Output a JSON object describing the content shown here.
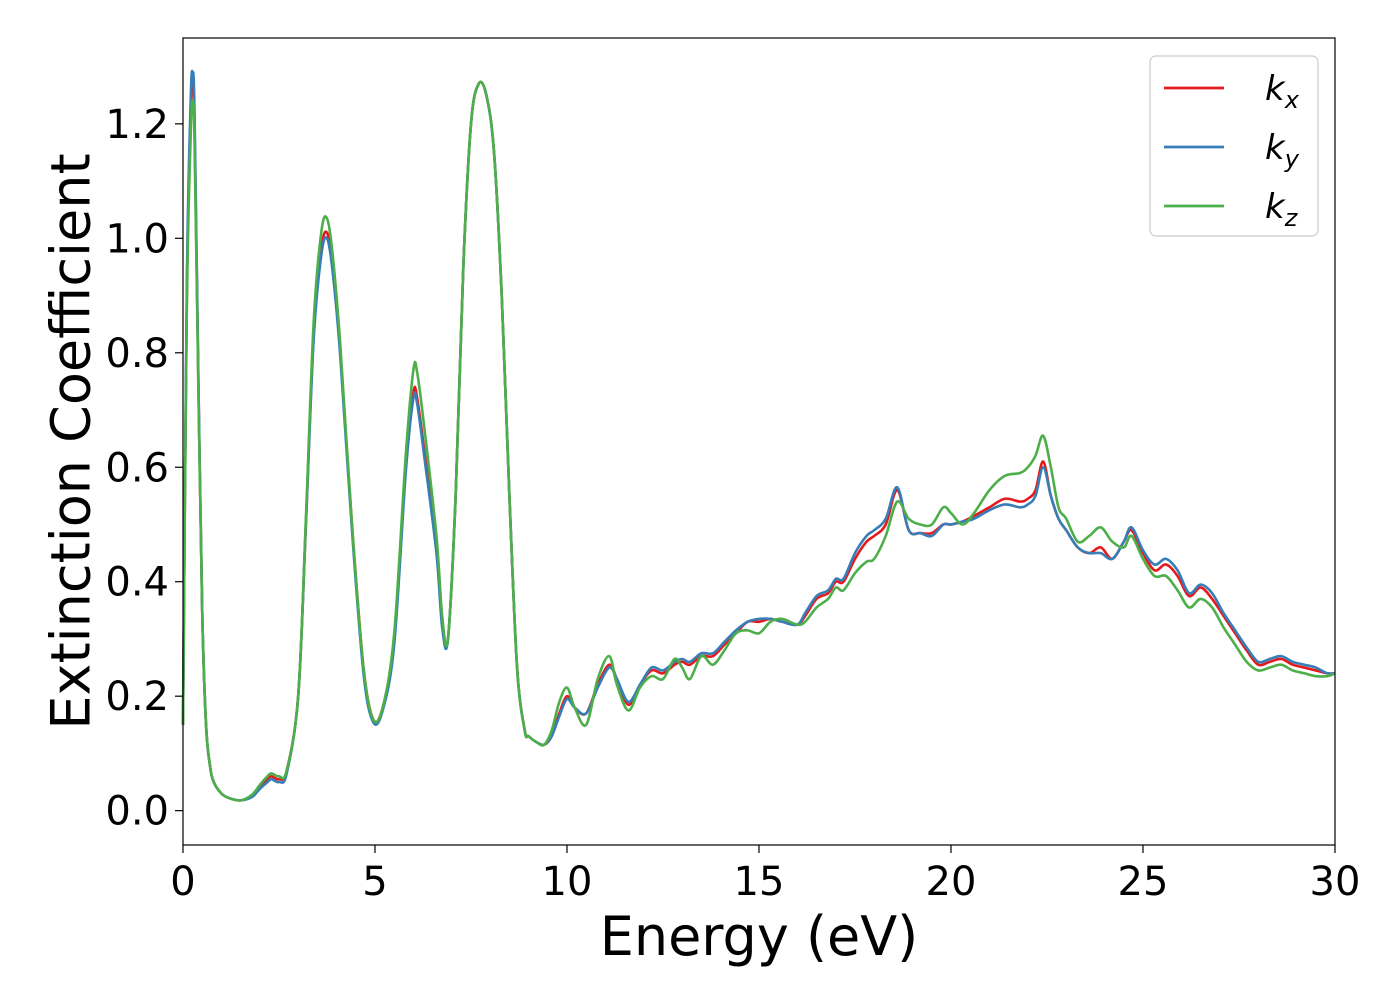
{
  "chart_data": {
    "type": "line",
    "title": "",
    "xlabel": "Energy (eV)",
    "ylabel": "Extinction Coefficient",
    "xlim": [
      0,
      30
    ],
    "ylim": [
      -0.06,
      1.35
    ],
    "xticks": [
      0,
      5,
      10,
      15,
      20,
      25,
      30
    ],
    "xtick_labels": [
      "0",
      "5",
      "10",
      "15",
      "20",
      "25",
      "30"
    ],
    "yticks": [
      0.0,
      0.2,
      0.4,
      0.6,
      0.8,
      1.0,
      1.2
    ],
    "ytick_labels": [
      "0.0",
      "0.2",
      "0.4",
      "0.6",
      "0.8",
      "1.0",
      "1.2"
    ],
    "grid": false,
    "legend_position": "top-right",
    "series": [
      {
        "name": "k_x",
        "label_base": "k",
        "label_sub": "x",
        "color": "#e41a1c",
        "x": [
          0.0,
          0.1,
          0.2,
          0.25,
          0.3,
          0.4,
          0.5,
          0.6,
          0.7,
          0.8,
          1.0,
          1.2,
          1.5,
          1.8,
          2.0,
          2.2,
          2.3,
          2.5,
          2.7,
          3.0,
          3.2,
          3.4,
          3.6,
          3.75,
          3.9,
          4.1,
          4.4,
          4.7,
          4.95,
          5.2,
          5.5,
          5.8,
          6.0,
          6.1,
          6.3,
          6.6,
          6.75,
          6.9,
          7.1,
          7.3,
          7.5,
          7.7,
          7.9,
          8.1,
          8.3,
          8.5,
          8.7,
          8.9,
          9.0,
          9.2,
          9.4,
          9.6,
          9.8,
          10.0,
          10.2,
          10.5,
          10.8,
          11.1,
          11.3,
          11.6,
          11.9,
          12.2,
          12.5,
          12.8,
          13.0,
          13.2,
          13.5,
          13.8,
          14.1,
          14.4,
          14.7,
          15.0,
          15.3,
          15.6,
          16.0,
          16.2,
          16.5,
          16.8,
          17.0,
          17.2,
          17.5,
          17.8,
          18.0,
          18.3,
          18.6,
          18.9,
          19.2,
          19.5,
          19.8,
          20.0,
          20.3,
          20.6,
          21.0,
          21.4,
          21.8,
          22.0,
          22.2,
          22.4,
          22.6,
          22.8,
          23.0,
          23.3,
          23.6,
          23.9,
          24.2,
          24.5,
          24.7,
          25.0,
          25.3,
          25.6,
          25.9,
          26.2,
          26.5,
          26.8,
          27.1,
          27.4,
          27.7,
          28.0,
          28.3,
          28.6,
          28.9,
          29.2,
          29.5,
          29.8,
          30.0
        ],
        "y": [
          0.15,
          0.9,
          1.22,
          1.28,
          1.2,
          0.75,
          0.35,
          0.15,
          0.08,
          0.05,
          0.03,
          0.022,
          0.018,
          0.025,
          0.04,
          0.055,
          0.06,
          0.055,
          0.07,
          0.2,
          0.5,
          0.83,
          0.98,
          1.01,
          0.95,
          0.8,
          0.5,
          0.25,
          0.16,
          0.18,
          0.3,
          0.6,
          0.73,
          0.72,
          0.62,
          0.46,
          0.33,
          0.3,
          0.55,
          0.95,
          1.2,
          1.27,
          1.25,
          1.15,
          0.9,
          0.55,
          0.25,
          0.14,
          0.13,
          0.12,
          0.115,
          0.13,
          0.17,
          0.2,
          0.18,
          0.17,
          0.22,
          0.255,
          0.23,
          0.185,
          0.22,
          0.245,
          0.24,
          0.255,
          0.26,
          0.255,
          0.27,
          0.27,
          0.29,
          0.31,
          0.33,
          0.33,
          0.335,
          0.33,
          0.325,
          0.34,
          0.37,
          0.38,
          0.4,
          0.4,
          0.44,
          0.47,
          0.48,
          0.5,
          0.56,
          0.49,
          0.485,
          0.485,
          0.5,
          0.5,
          0.505,
          0.515,
          0.53,
          0.545,
          0.54,
          0.545,
          0.56,
          0.61,
          0.55,
          0.51,
          0.49,
          0.46,
          0.45,
          0.46,
          0.44,
          0.47,
          0.49,
          0.45,
          0.42,
          0.43,
          0.41,
          0.375,
          0.39,
          0.37,
          0.34,
          0.31,
          0.28,
          0.255,
          0.26,
          0.265,
          0.255,
          0.25,
          0.245,
          0.24,
          0.24
        ]
      },
      {
        "name": "k_y",
        "label_base": "k",
        "label_sub": "y",
        "color": "#377eb8",
        "x": [
          0.0,
          0.1,
          0.2,
          0.25,
          0.3,
          0.4,
          0.5,
          0.6,
          0.7,
          0.8,
          1.0,
          1.2,
          1.5,
          1.8,
          2.0,
          2.2,
          2.3,
          2.5,
          2.7,
          3.0,
          3.2,
          3.4,
          3.6,
          3.75,
          3.9,
          4.1,
          4.4,
          4.7,
          4.95,
          5.2,
          5.5,
          5.8,
          6.0,
          6.1,
          6.3,
          6.6,
          6.75,
          6.9,
          7.1,
          7.3,
          7.5,
          7.7,
          7.9,
          8.1,
          8.3,
          8.5,
          8.7,
          8.9,
          9.0,
          9.2,
          9.4,
          9.6,
          9.8,
          10.0,
          10.2,
          10.5,
          10.8,
          11.1,
          11.3,
          11.6,
          11.9,
          12.2,
          12.5,
          12.8,
          13.0,
          13.2,
          13.5,
          13.8,
          14.1,
          14.4,
          14.7,
          15.0,
          15.3,
          15.6,
          16.0,
          16.2,
          16.5,
          16.8,
          17.0,
          17.2,
          17.5,
          17.8,
          18.0,
          18.3,
          18.6,
          18.9,
          19.2,
          19.5,
          19.8,
          20.0,
          20.3,
          20.6,
          21.0,
          21.4,
          21.8,
          22.0,
          22.2,
          22.4,
          22.6,
          22.8,
          23.0,
          23.3,
          23.6,
          23.9,
          24.2,
          24.5,
          24.7,
          25.0,
          25.3,
          25.6,
          25.9,
          26.2,
          26.5,
          26.8,
          27.1,
          27.4,
          27.7,
          28.0,
          28.3,
          28.6,
          28.9,
          29.2,
          29.5,
          29.8,
          30.0
        ],
        "y": [
          0.15,
          0.92,
          1.24,
          1.29,
          1.22,
          0.76,
          0.35,
          0.15,
          0.08,
          0.05,
          0.03,
          0.022,
          0.018,
          0.024,
          0.038,
          0.05,
          0.055,
          0.05,
          0.065,
          0.2,
          0.5,
          0.82,
          0.97,
          1.0,
          0.94,
          0.79,
          0.49,
          0.24,
          0.155,
          0.175,
          0.29,
          0.59,
          0.72,
          0.71,
          0.61,
          0.45,
          0.32,
          0.3,
          0.55,
          0.95,
          1.2,
          1.27,
          1.25,
          1.15,
          0.9,
          0.55,
          0.25,
          0.14,
          0.13,
          0.12,
          0.115,
          0.13,
          0.165,
          0.195,
          0.18,
          0.17,
          0.215,
          0.25,
          0.23,
          0.19,
          0.22,
          0.25,
          0.245,
          0.26,
          0.265,
          0.26,
          0.275,
          0.275,
          0.295,
          0.315,
          0.33,
          0.335,
          0.335,
          0.33,
          0.325,
          0.345,
          0.375,
          0.385,
          0.405,
          0.405,
          0.45,
          0.48,
          0.49,
          0.51,
          0.565,
          0.49,
          0.485,
          0.48,
          0.5,
          0.5,
          0.505,
          0.51,
          0.525,
          0.535,
          0.53,
          0.535,
          0.55,
          0.6,
          0.55,
          0.51,
          0.49,
          0.46,
          0.45,
          0.45,
          0.44,
          0.47,
          0.495,
          0.455,
          0.43,
          0.44,
          0.42,
          0.38,
          0.395,
          0.38,
          0.345,
          0.315,
          0.285,
          0.26,
          0.265,
          0.27,
          0.26,
          0.255,
          0.25,
          0.24,
          0.24
        ]
      },
      {
        "name": "k_z",
        "label_base": "k",
        "label_sub": "z",
        "color": "#4daf4a",
        "x": [
          0.0,
          0.1,
          0.2,
          0.25,
          0.3,
          0.4,
          0.5,
          0.6,
          0.7,
          0.8,
          1.0,
          1.2,
          1.5,
          1.8,
          2.0,
          2.2,
          2.3,
          2.5,
          2.7,
          3.0,
          3.2,
          3.4,
          3.6,
          3.75,
          3.9,
          4.1,
          4.4,
          4.7,
          4.95,
          5.2,
          5.5,
          5.8,
          6.0,
          6.1,
          6.3,
          6.6,
          6.75,
          6.9,
          7.1,
          7.3,
          7.5,
          7.7,
          7.9,
          8.1,
          8.3,
          8.5,
          8.7,
          8.9,
          9.0,
          9.2,
          9.4,
          9.6,
          9.8,
          10.0,
          10.2,
          10.5,
          10.8,
          11.1,
          11.3,
          11.6,
          11.9,
          12.2,
          12.5,
          12.8,
          13.0,
          13.2,
          13.5,
          13.8,
          14.1,
          14.4,
          14.7,
          15.0,
          15.3,
          15.6,
          16.0,
          16.2,
          16.5,
          16.8,
          17.0,
          17.2,
          17.5,
          17.8,
          18.0,
          18.3,
          18.6,
          18.9,
          19.2,
          19.5,
          19.8,
          20.0,
          20.3,
          20.6,
          21.0,
          21.4,
          21.8,
          22.0,
          22.2,
          22.4,
          22.6,
          22.8,
          23.0,
          23.3,
          23.6,
          23.9,
          24.2,
          24.5,
          24.7,
          25.0,
          25.3,
          25.6,
          25.9,
          26.2,
          26.5,
          26.8,
          27.1,
          27.4,
          27.7,
          28.0,
          28.3,
          28.6,
          28.9,
          29.2,
          29.5,
          29.8,
          30.0
        ],
        "y": [
          0.15,
          0.88,
          1.18,
          1.24,
          1.17,
          0.74,
          0.35,
          0.15,
          0.08,
          0.05,
          0.03,
          0.022,
          0.018,
          0.028,
          0.045,
          0.06,
          0.065,
          0.06,
          0.07,
          0.2,
          0.51,
          0.85,
          1.01,
          1.035,
          0.97,
          0.81,
          0.5,
          0.25,
          0.16,
          0.18,
          0.31,
          0.62,
          0.77,
          0.765,
          0.66,
          0.48,
          0.34,
          0.3,
          0.55,
          0.95,
          1.2,
          1.27,
          1.25,
          1.15,
          0.9,
          0.55,
          0.25,
          0.14,
          0.13,
          0.12,
          0.115,
          0.14,
          0.19,
          0.215,
          0.18,
          0.15,
          0.23,
          0.27,
          0.22,
          0.175,
          0.215,
          0.235,
          0.23,
          0.265,
          0.25,
          0.23,
          0.27,
          0.255,
          0.28,
          0.31,
          0.315,
          0.31,
          0.33,
          0.335,
          0.325,
          0.33,
          0.355,
          0.37,
          0.39,
          0.385,
          0.415,
          0.435,
          0.44,
          0.48,
          0.54,
          0.51,
          0.5,
          0.5,
          0.53,
          0.52,
          0.5,
          0.52,
          0.56,
          0.585,
          0.59,
          0.6,
          0.62,
          0.655,
          0.6,
          0.53,
          0.51,
          0.47,
          0.48,
          0.495,
          0.47,
          0.46,
          0.48,
          0.44,
          0.41,
          0.41,
          0.385,
          0.355,
          0.37,
          0.355,
          0.32,
          0.29,
          0.26,
          0.245,
          0.25,
          0.255,
          0.245,
          0.24,
          0.235,
          0.235,
          0.24
        ]
      }
    ]
  }
}
